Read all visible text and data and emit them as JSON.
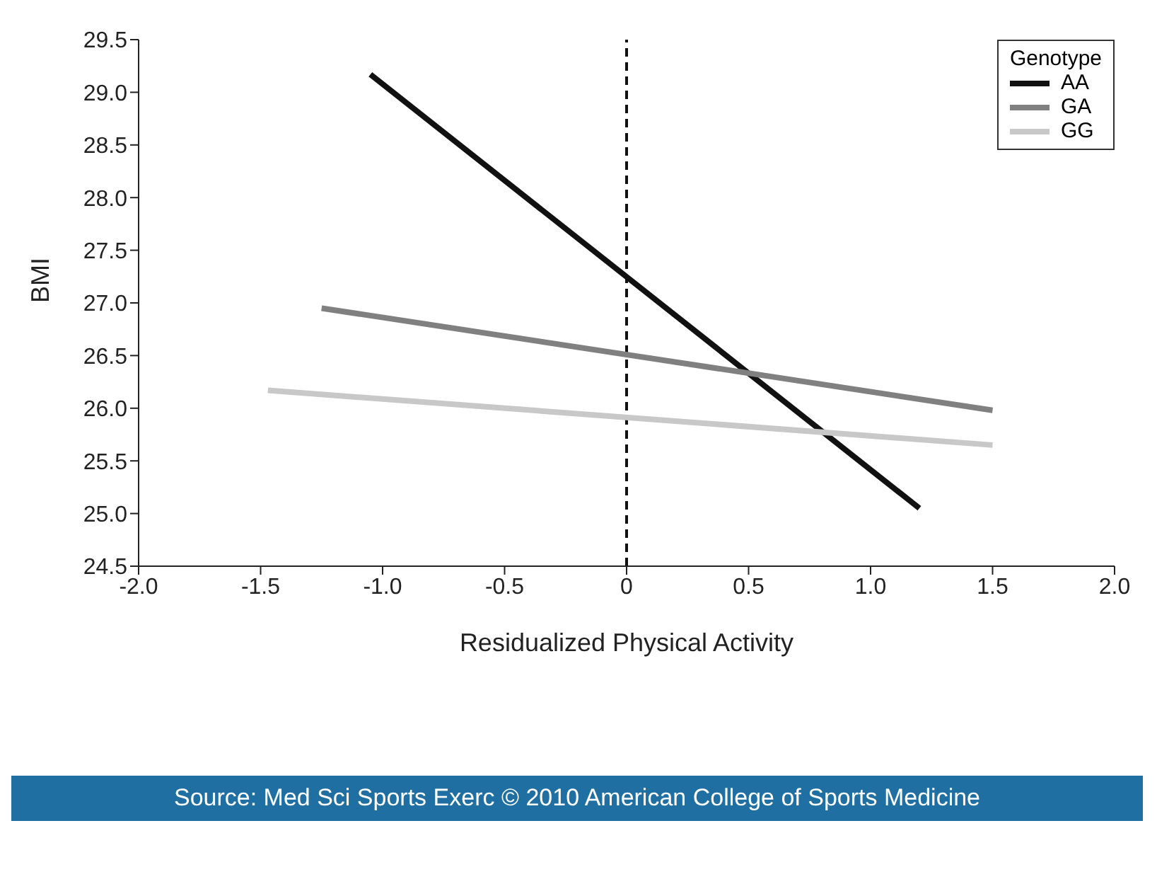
{
  "chart_data": {
    "type": "line",
    "xlabel": "Residualized Physical Activity",
    "ylabel": "BMI",
    "legend_title": "Genotype",
    "legend": "top right",
    "grid": false,
    "marker": "none",
    "line_style": "solid",
    "xlim": [
      -2,
      2
    ],
    "xticks": [
      {
        "value": -2,
        "label": "-2.0"
      },
      {
        "value": -1.5,
        "label": "-1.5"
      },
      {
        "value": -1,
        "label": "-1.0"
      },
      {
        "value": -0.5,
        "label": "-0.5"
      },
      0,
      {
        "value": 0.5,
        "label": "0.5"
      },
      {
        "value": 1,
        "label": "1.0"
      },
      {
        "value": 1.5,
        "label": "1.5"
      },
      {
        "value": 2,
        "label": "2.0"
      }
    ],
    "ylim": [
      24.5,
      29.5
    ],
    "yticks": [
      24.5,
      {
        "value": 25,
        "label": "25.0"
      },
      25.5,
      {
        "value": 26,
        "label": "26.0"
      },
      26.5,
      {
        "value": 27,
        "label": "27.0"
      },
      27.5,
      {
        "value": 28,
        "label": "28.0"
      },
      28.5,
      {
        "value": 29,
        "label": "29.0"
      },
      29.5
    ],
    "series": [
      {
        "name": "AA",
        "color": "#111111",
        "x": [
          -1.05,
          1.2
        ],
        "values": [
          29.17,
          25.05
        ]
      },
      {
        "name": "GA",
        "color": "#808080",
        "x": [
          -1.25,
          1.5
        ],
        "values": [
          26.95,
          25.98
        ]
      },
      {
        "name": "GG",
        "color": "#c8c8c8",
        "x": [
          -1.47,
          1.5
        ],
        "values": [
          26.17,
          25.65
        ]
      }
    ],
    "ref_lines": [
      {
        "axis": "x",
        "value": 0,
        "color": "#111111",
        "line_style": "dashed"
      }
    ],
    "annotations": [
      "Source: Med Sci Sports Exerc © 2010 American College of Sports Medicine"
    ]
  }
}
